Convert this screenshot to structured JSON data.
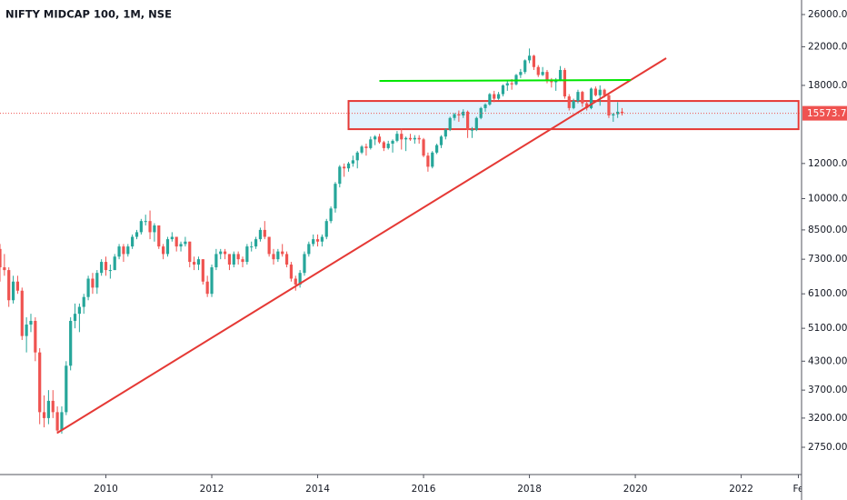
{
  "chart_data": {
    "type": "candlestick",
    "title": "NIFTY MIDCAP 100, 1M, NSE",
    "log_scale": true,
    "up_color": "#26a69a",
    "down_color": "#ef5350",
    "xlim": [
      2008.0,
      2023.14
    ],
    "xticks": [
      2010,
      2012,
      2014,
      2016,
      2018,
      2020,
      2022,
      {
        "value": 2023.08,
        "label": "Fe"
      }
    ],
    "ylim": [
      2387,
      28041
    ],
    "yticks": [
      {
        "value": 2750,
        "label": "2750.00"
      },
      {
        "value": 3200,
        "label": "3200.00"
      },
      {
        "value": 3700,
        "label": "3700.00"
      },
      {
        "value": 4300,
        "label": "4300.00"
      },
      {
        "value": 5100,
        "label": "5100.00"
      },
      {
        "value": 6100,
        "label": "6100.00"
      },
      {
        "value": 7300,
        "label": "7300.00"
      },
      {
        "value": 8500,
        "label": "8500.00"
      },
      {
        "value": 10000,
        "label": "10000.00"
      },
      {
        "value": 12000,
        "label": "12000.00"
      },
      {
        "value": 18000,
        "label": "18000.00"
      },
      {
        "value": 22000,
        "label": "22000.00"
      },
      {
        "value": 26000,
        "label": "26000.00"
      }
    ],
    "last_price": {
      "value": 15573.7,
      "label": "15573.70",
      "color": "#ef5350"
    },
    "x": [
      "2008-01",
      "2008-02",
      "2008-03",
      "2008-04",
      "2008-05",
      "2008-06",
      "2008-07",
      "2008-08",
      "2008-09",
      "2008-10",
      "2008-11",
      "2008-12",
      "2009-01",
      "2009-02",
      "2009-03",
      "2009-04",
      "2009-05",
      "2009-06",
      "2009-07",
      "2009-08",
      "2009-09",
      "2009-10",
      "2009-11",
      "2009-12",
      "2010-01",
      "2010-02",
      "2010-03",
      "2010-04",
      "2010-05",
      "2010-06",
      "2010-07",
      "2010-08",
      "2010-09",
      "2010-10",
      "2010-11",
      "2010-12",
      "2011-01",
      "2011-02",
      "2011-03",
      "2011-04",
      "2011-05",
      "2011-06",
      "2011-07",
      "2011-08",
      "2011-09",
      "2011-10",
      "2011-11",
      "2011-12",
      "2012-01",
      "2012-02",
      "2012-03",
      "2012-04",
      "2012-05",
      "2012-06",
      "2012-07",
      "2012-08",
      "2012-09",
      "2012-10",
      "2012-11",
      "2012-12",
      "2013-01",
      "2013-02",
      "2013-03",
      "2013-04",
      "2013-05",
      "2013-06",
      "2013-07",
      "2013-08",
      "2013-09",
      "2013-10",
      "2013-11",
      "2013-12",
      "2014-01",
      "2014-02",
      "2014-03",
      "2014-04",
      "2014-05",
      "2014-06",
      "2014-07",
      "2014-08",
      "2014-09",
      "2014-10",
      "2014-11",
      "2014-12",
      "2015-01",
      "2015-02",
      "2015-03",
      "2015-04",
      "2015-05",
      "2015-06",
      "2015-07",
      "2015-08",
      "2015-09",
      "2015-10",
      "2015-11",
      "2015-12",
      "2016-01",
      "2016-02",
      "2016-03",
      "2016-04",
      "2016-05",
      "2016-06",
      "2016-07",
      "2016-08",
      "2016-09",
      "2016-10",
      "2016-11",
      "2016-12",
      "2017-01",
      "2017-02",
      "2017-03",
      "2017-04",
      "2017-05",
      "2017-06",
      "2017-07",
      "2017-08",
      "2017-09",
      "2017-10",
      "2017-11",
      "2017-12",
      "2018-01",
      "2018-02",
      "2018-03",
      "2018-04",
      "2018-05",
      "2018-06",
      "2018-07",
      "2018-08",
      "2018-09",
      "2018-10",
      "2018-11",
      "2018-12",
      "2019-01",
      "2019-02",
      "2019-03",
      "2019-04",
      "2019-05",
      "2019-06",
      "2019-07",
      "2019-08",
      "2019-09",
      "2019-10"
    ],
    "ohlc": [
      [
        7700,
        7900,
        6500,
        7000
      ],
      [
        7000,
        7500,
        6700,
        6900
      ],
      [
        6900,
        7000,
        5700,
        5900
      ],
      [
        5900,
        6700,
        5800,
        6500
      ],
      [
        6500,
        6700,
        6100,
        6200
      ],
      [
        6200,
        6300,
        4800,
        4900
      ],
      [
        4900,
        5400,
        4500,
        5200
      ],
      [
        5200,
        5500,
        5000,
        5300
      ],
      [
        5300,
        5400,
        4300,
        4500
      ],
      [
        4500,
        4600,
        3100,
        3300
      ],
      [
        3300,
        3600,
        3050,
        3200
      ],
      [
        3200,
        3700,
        3100,
        3500
      ],
      [
        3500,
        3700,
        3200,
        3300
      ],
      [
        3300,
        3400,
        2950,
        3000
      ],
      [
        3000,
        3400,
        2950,
        3300
      ],
      [
        3300,
        4300,
        3250,
        4200
      ],
      [
        4200,
        5400,
        4100,
        5300
      ],
      [
        5300,
        5800,
        5100,
        5500
      ],
      [
        5500,
        5800,
        5000,
        5700
      ],
      [
        5700,
        6100,
        5500,
        6000
      ],
      [
        6000,
        6700,
        5900,
        6600
      ],
      [
        6600,
        6800,
        6100,
        6300
      ],
      [
        6300,
        6900,
        6100,
        6800
      ],
      [
        6800,
        7300,
        6700,
        7200
      ],
      [
        7200,
        7400,
        6700,
        6900
      ],
      [
        6900,
        7100,
        6600,
        6900
      ],
      [
        6900,
        7500,
        6900,
        7400
      ],
      [
        7400,
        7900,
        7300,
        7800
      ],
      [
        7800,
        7900,
        7200,
        7500
      ],
      [
        7500,
        7900,
        7400,
        7800
      ],
      [
        7800,
        8300,
        7700,
        8200
      ],
      [
        8200,
        8500,
        8100,
        8400
      ],
      [
        8400,
        9000,
        8300,
        8900
      ],
      [
        8900,
        9200,
        8700,
        8900
      ],
      [
        8900,
        9400,
        8100,
        8400
      ],
      [
        8400,
        8800,
        8000,
        8700
      ],
      [
        8700,
        8700,
        7700,
        7800
      ],
      [
        7800,
        7900,
        7300,
        7500
      ],
      [
        7500,
        8200,
        7400,
        8100
      ],
      [
        8100,
        8400,
        8000,
        8200
      ],
      [
        8200,
        8200,
        7600,
        7800
      ],
      [
        7800,
        8000,
        7600,
        7900
      ],
      [
        7900,
        8200,
        7800,
        8000
      ],
      [
        8000,
        8000,
        7000,
        7200
      ],
      [
        7200,
        7400,
        6900,
        7100
      ],
      [
        7100,
        7400,
        6900,
        7300
      ],
      [
        7300,
        7300,
        6400,
        6500
      ],
      [
        6500,
        6700,
        6000,
        6100
      ],
      [
        6100,
        7100,
        6000,
        7000
      ],
      [
        7000,
        7700,
        6900,
        7500
      ],
      [
        7500,
        7700,
        7300,
        7600
      ],
      [
        7600,
        7700,
        7300,
        7500
      ],
      [
        7500,
        7500,
        6900,
        7100
      ],
      [
        7100,
        7600,
        7000,
        7500
      ],
      [
        7500,
        7600,
        7100,
        7300
      ],
      [
        7300,
        7400,
        7000,
        7200
      ],
      [
        7200,
        7900,
        7100,
        7800
      ],
      [
        7800,
        8000,
        7600,
        7800
      ],
      [
        7800,
        8200,
        7700,
        8100
      ],
      [
        8100,
        8600,
        8000,
        8500
      ],
      [
        8500,
        8900,
        8100,
        8200
      ],
      [
        8200,
        8200,
        7400,
        7500
      ],
      [
        7500,
        7700,
        7100,
        7300
      ],
      [
        7300,
        7700,
        7200,
        7600
      ],
      [
        7600,
        7900,
        7400,
        7500
      ],
      [
        7500,
        7600,
        7000,
        7100
      ],
      [
        7100,
        7200,
        6500,
        6600
      ],
      [
        6600,
        6700,
        6200,
        6400
      ],
      [
        6400,
        6900,
        6300,
        6800
      ],
      [
        6800,
        7600,
        6700,
        7500
      ],
      [
        7500,
        8000,
        7400,
        7900
      ],
      [
        7900,
        8300,
        7800,
        8100
      ],
      [
        8100,
        8300,
        7800,
        8000
      ],
      [
        8000,
        8300,
        7800,
        8200
      ],
      [
        8200,
        9000,
        8100,
        8900
      ],
      [
        8900,
        9600,
        8800,
        9500
      ],
      [
        9500,
        10900,
        9300,
        10800
      ],
      [
        10800,
        11900,
        10600,
        11800
      ],
      [
        11800,
        12000,
        11200,
        11700
      ],
      [
        11700,
        12100,
        11500,
        12000
      ],
      [
        12000,
        12500,
        11800,
        12200
      ],
      [
        12200,
        12800,
        11700,
        12700
      ],
      [
        12700,
        13200,
        12600,
        13100
      ],
      [
        13100,
        13300,
        12500,
        13000
      ],
      [
        13000,
        13800,
        12900,
        13600
      ],
      [
        13600,
        13900,
        13200,
        13800
      ],
      [
        13800,
        14000,
        13300,
        13400
      ],
      [
        13400,
        13500,
        12800,
        13000
      ],
      [
        13000,
        13500,
        12900,
        13300
      ],
      [
        13300,
        13600,
        12700,
        13500
      ],
      [
        13500,
        14200,
        13400,
        14000
      ],
      [
        14000,
        14400,
        12900,
        13600
      ],
      [
        13600,
        13800,
        12800,
        13700
      ],
      [
        13700,
        14000,
        13500,
        13600
      ],
      [
        13600,
        13900,
        13300,
        13700
      ],
      [
        13700,
        13900,
        13300,
        13600
      ],
      [
        13600,
        13700,
        12400,
        12500
      ],
      [
        12500,
        12700,
        11500,
        11800
      ],
      [
        11800,
        12800,
        11700,
        12700
      ],
      [
        12700,
        13300,
        12600,
        13200
      ],
      [
        13200,
        13900,
        13000,
        13800
      ],
      [
        13800,
        14400,
        13600,
        14300
      ],
      [
        14300,
        15300,
        14200,
        15200
      ],
      [
        15200,
        15600,
        15000,
        15500
      ],
      [
        15500,
        15800,
        14900,
        15400
      ],
      [
        15400,
        15900,
        15200,
        15700
      ],
      [
        15700,
        15800,
        13700,
        14300
      ],
      [
        14300,
        14500,
        13700,
        14300
      ],
      [
        14300,
        15300,
        14200,
        15200
      ],
      [
        15200,
        16100,
        15100,
        16000
      ],
      [
        16000,
        16400,
        15700,
        16300
      ],
      [
        16300,
        17300,
        16200,
        17200
      ],
      [
        17200,
        17500,
        16500,
        16800
      ],
      [
        16800,
        17400,
        16700,
        17200
      ],
      [
        17200,
        18100,
        17000,
        18000
      ],
      [
        18000,
        18400,
        17500,
        18200
      ],
      [
        18200,
        18600,
        17600,
        18100
      ],
      [
        18100,
        19100,
        18000,
        19000
      ],
      [
        19000,
        19600,
        18700,
        19300
      ],
      [
        19300,
        20600,
        19100,
        20500
      ],
      [
        20500,
        21800,
        20200,
        21000
      ],
      [
        21000,
        21100,
        19500,
        19800
      ],
      [
        19800,
        20000,
        18800,
        19000
      ],
      [
        19000,
        19800,
        18900,
        19300
      ],
      [
        19300,
        19500,
        18200,
        18400
      ],
      [
        18400,
        18700,
        17800,
        18300
      ],
      [
        18300,
        18700,
        17500,
        18500
      ],
      [
        18500,
        19900,
        18400,
        19500
      ],
      [
        19500,
        19700,
        16800,
        17000
      ],
      [
        17000,
        17200,
        15800,
        16000
      ],
      [
        16000,
        16800,
        15900,
        16600
      ],
      [
        16600,
        17600,
        16400,
        17400
      ],
      [
        17400,
        17500,
        16100,
        16400
      ],
      [
        16400,
        16600,
        15800,
        16000
      ],
      [
        16000,
        17800,
        15900,
        17700
      ],
      [
        17700,
        17900,
        17000,
        17100
      ],
      [
        17100,
        18000,
        16200,
        17600
      ],
      [
        17600,
        17700,
        16900,
        17100
      ],
      [
        17100,
        17200,
        15200,
        15400
      ],
      [
        15400,
        15600,
        14900,
        15500
      ],
      [
        15500,
        16500,
        15200,
        15700
      ],
      [
        15700,
        16000,
        15400,
        15573.7
      ]
    ],
    "drawings": [
      {
        "kind": "box",
        "color": "#e53935",
        "fill": "rgba(33,150,243,0.13)",
        "x": [
          "2014-08",
          "2023-02"
        ],
        "y": [
          14340,
          16600
        ]
      },
      {
        "kind": "line",
        "color": "#e53935",
        "x": [
          "2009-02",
          "2020-08"
        ],
        "y": [
          2964,
          20730
        ]
      },
      {
        "kind": "line",
        "color": "#00e600",
        "x": [
          "2015-03",
          "2019-12"
        ],
        "y": [
          18420,
          18510
        ]
      }
    ]
  }
}
